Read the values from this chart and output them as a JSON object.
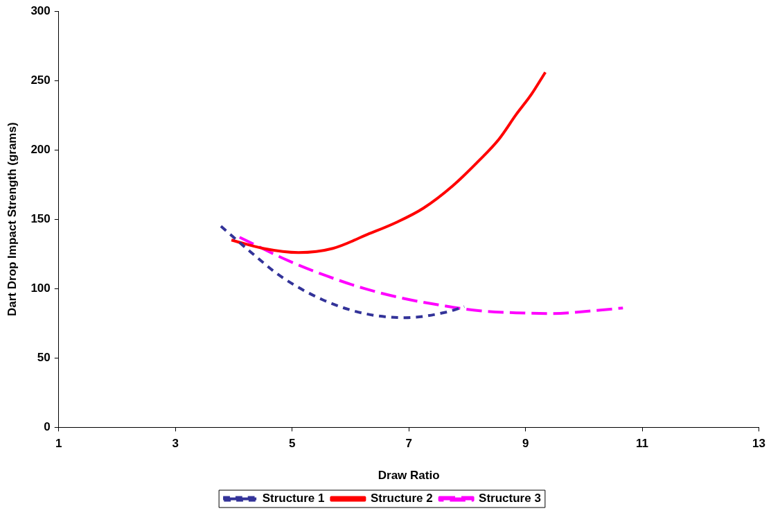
{
  "chart_data": {
    "type": "line",
    "xlabel": "Draw Ratio",
    "ylabel": "Dart Drop Impact Strength (grams)",
    "xlim": [
      1,
      13
    ],
    "xticks": [
      1,
      3,
      5,
      7,
      9,
      11,
      13
    ],
    "ylim": [
      0,
      300
    ],
    "yticks": [
      0,
      50,
      100,
      150,
      200,
      250,
      300
    ],
    "grid": false,
    "legend": "bottom",
    "marker": "none",
    "series": [
      {
        "name": "Structure 1",
        "color": "#333399",
        "line_style": "dashed",
        "x": [
          3.78,
          4.3,
          4.8,
          5.52,
          6.24,
          6.94,
          7.64,
          7.95
        ],
        "values": [
          145,
          126,
          109,
          92,
          82,
          79,
          83,
          87
        ]
      },
      {
        "name": "Structure 2",
        "color": "#ff0000",
        "line_style": "solid",
        "x": [
          3.96,
          4.5,
          5.11,
          5.7,
          6.29,
          6.8,
          7.25,
          7.75,
          8.22,
          8.55,
          8.84,
          9.1,
          9.34
        ],
        "values": [
          135,
          129,
          126,
          129,
          139,
          148,
          158,
          174,
          193,
          208,
          225.5,
          240,
          256
        ]
      },
      {
        "name": "Structure 3",
        "color": "#ff00ff",
        "line_style": "dashed",
        "x": [
          4.1,
          4.94,
          5.6,
          6.24,
          6.9,
          7.54,
          8.22,
          8.85,
          9.47,
          10.14,
          10.67
        ],
        "values": [
          137,
          120,
          109,
          100,
          93,
          88,
          84,
          82.5,
          82,
          84,
          86
        ]
      }
    ]
  }
}
